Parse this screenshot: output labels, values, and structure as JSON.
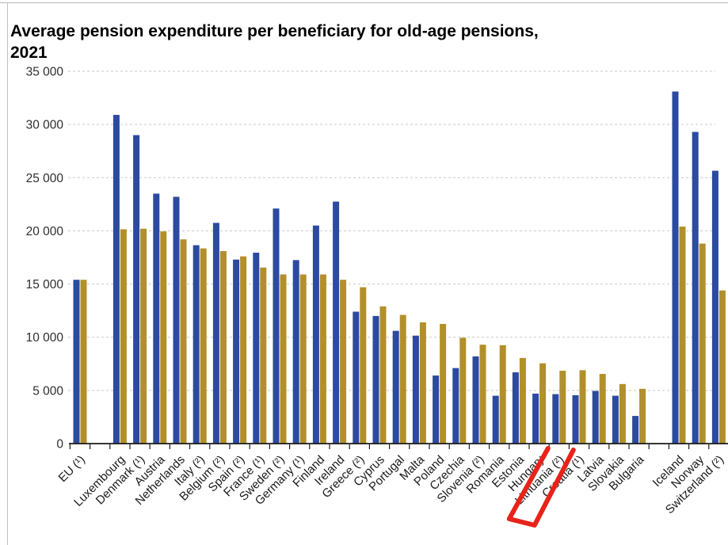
{
  "title": {
    "line1": "Average pension expenditure per beneficiary for old-age pensions,",
    "line2": "2021"
  },
  "chart_data": {
    "type": "bar",
    "title": "Average pension expenditure per beneficiary for old-age pensions, 2021",
    "xlabel": "",
    "ylabel": "",
    "y_axis": {
      "min": 0,
      "max": 35000,
      "tick_step": 5000,
      "tick_labels": [
        "0",
        "5 000",
        "10 000",
        "15 000",
        "20 000",
        "25 000",
        "30 000",
        "35 000"
      ],
      "gridlines": "dashed-horizontal"
    },
    "legend": "none",
    "categories": [
      "EU (¹)",
      "Luxembourg",
      "Denmark (¹)",
      "Austria",
      "Netherlands",
      "Italy (²)",
      "Belgium (²)",
      "Spain (²)",
      "France (¹)",
      "Sweden (²)",
      "Germany (¹)",
      "Finland",
      "Ireland",
      "Greece (²)",
      "Cyprus",
      "Portugal",
      "Malta",
      "Poland",
      "Czechia",
      "Slovenia (²)",
      "Romania",
      "Estonia",
      "Hungary",
      "Lithuania (²)",
      "Croatia (¹)",
      "Latvia",
      "Slovakia",
      "Bulgaria",
      "Iceland",
      "Norway",
      "Switzerland (²)"
    ],
    "group_gaps_after": [
      "EU (¹)",
      "Bulgaria"
    ],
    "series": [
      {
        "name": "series-1-blue",
        "color": "#2b4aa0",
        "values": [
          15400,
          30900,
          29000,
          23500,
          23200,
          18650,
          20750,
          17300,
          17950,
          22100,
          17250,
          20500,
          22750,
          12400,
          12000,
          10600,
          10150,
          6400,
          7100,
          8200,
          4500,
          6700,
          4700,
          4650,
          4550,
          4950,
          4500,
          2600,
          33100,
          29300,
          25650
        ]
      },
      {
        "name": "series-2-gold",
        "color": "#b1902c",
        "values": [
          15400,
          20150,
          20200,
          19950,
          19200,
          18350,
          18100,
          17600,
          16550,
          15900,
          15900,
          15900,
          15400,
          14700,
          12900,
          12100,
          11400,
          11250,
          9950,
          9300,
          9250,
          8050,
          7550,
          6850,
          6900,
          6550,
          5600,
          5150,
          20400,
          18800,
          14400
        ]
      }
    ],
    "annotation": {
      "shape": "hand-drawn-box",
      "target": "Lithuania (²)",
      "color": "#e8231a"
    }
  }
}
